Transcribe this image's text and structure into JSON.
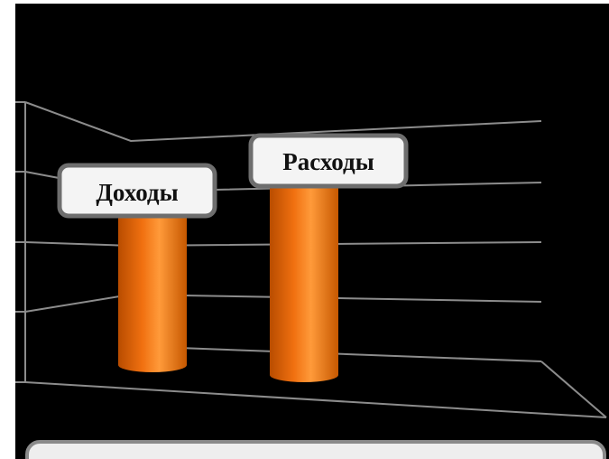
{
  "chart_data": {
    "type": "bar",
    "style": "3d-cylinder",
    "categories": [
      "Доходы",
      "Расходы"
    ],
    "values": [
      5,
      6.5
    ],
    "ylim": [
      0,
      10
    ],
    "grid": true,
    "xlabel": "",
    "ylabel": "",
    "title": ""
  },
  "colors": {
    "background": "#000000",
    "bar": "#f07010",
    "bar_highlight": "#ff9a3a",
    "bar_shadow": "#b84c00",
    "grid": "#8c8c8c",
    "callout_fill": "#f4f4f4",
    "callout_border": "#6e6e6e"
  }
}
